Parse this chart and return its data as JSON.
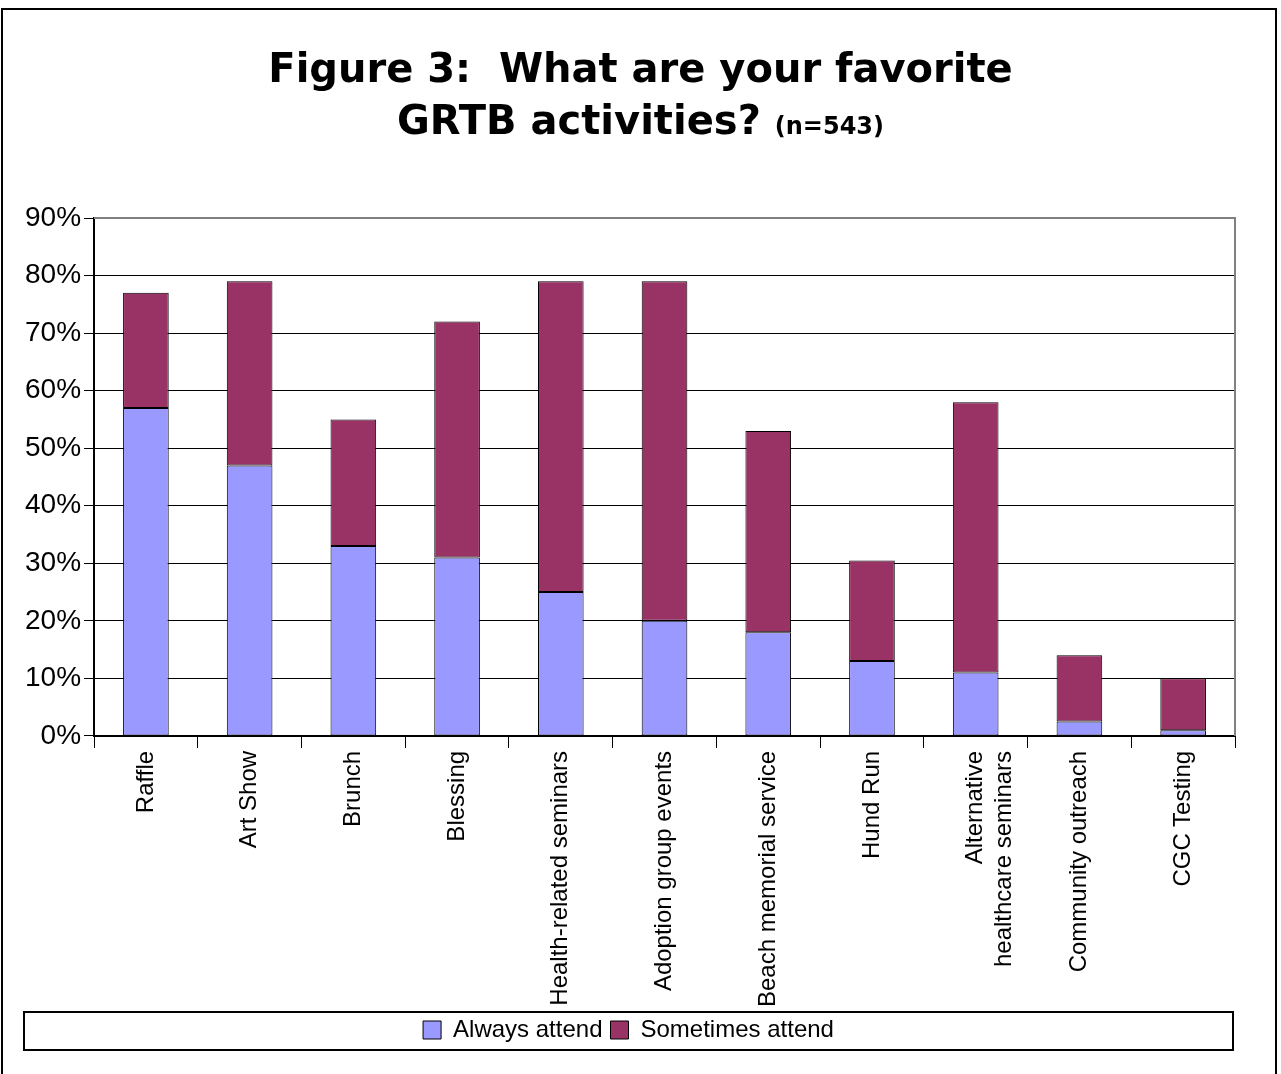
{
  "chart_data": {
    "type": "bar",
    "title": "Figure 3:  What are your favorite GRTB activities?",
    "subtitle": "(n=543)",
    "categories": [
      "Raffle",
      "Art Show",
      "Brunch",
      "Blessing",
      "Health-related seminars",
      "Adoption group events",
      "Beach memorial service",
      "Hund Run",
      "Alternative healthcare seminars",
      "Community outreach",
      "CGC Testing"
    ],
    "series": [
      {
        "name": "Always attend",
        "color": "#9999ff",
        "values": [
          57,
          47,
          33,
          31,
          25,
          20,
          18,
          13,
          11,
          2.5,
          1
        ]
      },
      {
        "name": "Sometimes attend",
        "color": "#993366",
        "values": [
          20,
          32,
          22,
          41,
          54,
          59,
          35,
          17.5,
          47,
          11.5,
          9
        ]
      }
    ],
    "stacked": true,
    "ylim": [
      0,
      90
    ],
    "yticks": [
      {
        "value": 0,
        "label": "0%"
      },
      {
        "value": 10,
        "label": "10%"
      },
      {
        "value": 20,
        "label": "20%"
      },
      {
        "value": 30,
        "label": "30%"
      },
      {
        "value": 40,
        "label": "40%"
      },
      {
        "value": 50,
        "label": "50%"
      },
      {
        "value": 60,
        "label": "60%"
      },
      {
        "value": 70,
        "label": "70%"
      },
      {
        "value": 80,
        "label": "80%"
      },
      {
        "value": 90,
        "label": "90%"
      }
    ],
    "grid": "y",
    "legend": "bottom"
  }
}
